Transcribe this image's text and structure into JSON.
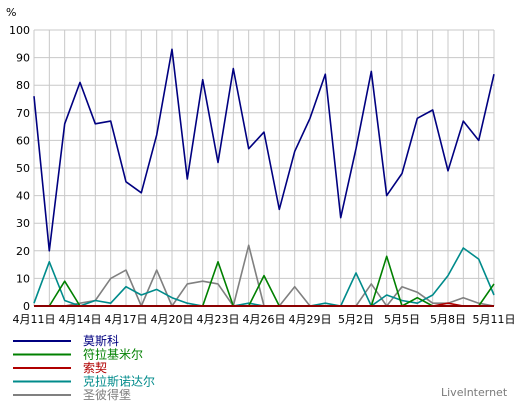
{
  "chart_data": {
    "type": "line",
    "ylabel": "%",
    "ylim": [
      0,
      100
    ],
    "yticks": [
      "0",
      "10",
      "20",
      "30",
      "40",
      "50",
      "60",
      "70",
      "80",
      "90",
      "100"
    ],
    "xtick_labels": [
      "4月11日",
      "4月14日",
      "4月17日",
      "4月20日",
      "4月23日",
      "4月26日",
      "4月29日",
      "5月2日",
      "5月5日",
      "5月8日",
      "5月11日"
    ],
    "grid": true,
    "legend_position": "bottom-left",
    "watermark": "LiveInternet",
    "series": [
      {
        "name": "莫斯科",
        "color": "#000080",
        "values": [
          76,
          20,
          66,
          81,
          66,
          67,
          45,
          41,
          62,
          93,
          46,
          82,
          52,
          86,
          57,
          63,
          35,
          56,
          68,
          84,
          32,
          57,
          85,
          40,
          48,
          68,
          71,
          49,
          67,
          60,
          84
        ]
      },
      {
        "name": "符拉基米尔",
        "color": "#008000",
        "values": [
          0,
          0,
          9,
          0,
          0,
          0,
          0,
          0,
          0,
          0,
          0,
          0,
          16,
          0,
          0,
          11,
          0,
          0,
          0,
          0,
          0,
          0,
          0,
          18,
          0,
          3,
          0,
          0,
          0,
          0,
          8
        ]
      },
      {
        "name": "索契",
        "color": "#b00000",
        "values": [
          0,
          0,
          0,
          0,
          0,
          0,
          0,
          0,
          0,
          0,
          0,
          0,
          0,
          0,
          0,
          0,
          0,
          0,
          0,
          0,
          0,
          0,
          0,
          0,
          0,
          0,
          0,
          1,
          0,
          0,
          0
        ]
      },
      {
        "name": "克拉斯诺达尔",
        "color": "#008b8b",
        "values": [
          1,
          16,
          2,
          0,
          2,
          1,
          7,
          4,
          6,
          3,
          1,
          0,
          0,
          0,
          1,
          0,
          0,
          0,
          0,
          1,
          0,
          12,
          0,
          4,
          2,
          1,
          4,
          11,
          21,
          17,
          4
        ]
      },
      {
        "name": "圣彼得堡",
        "color": "#808080",
        "values": [
          0,
          0,
          0,
          1,
          2,
          10,
          13,
          0,
          13,
          0,
          8,
          9,
          8,
          0,
          22,
          0,
          0,
          7,
          0,
          0,
          0,
          0,
          8,
          0,
          7,
          5,
          1,
          1,
          3,
          1,
          0
        ]
      }
    ]
  }
}
